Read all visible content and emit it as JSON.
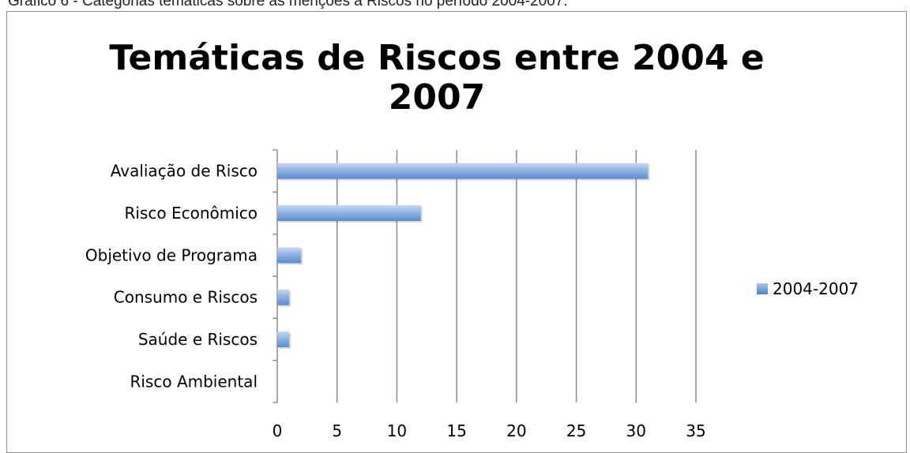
{
  "caption": "Gráfico 6 - Categorias temáticas sobre as menções a Riscos no período 2004-2007.",
  "colors": {
    "bar": "#6d9bd6",
    "bar_light": "#b9d0ef",
    "bar_dark": "#4a7bbf",
    "grid": "#8c8c8c"
  },
  "chart_data": {
    "type": "bar",
    "orientation": "horizontal",
    "title_lines": [
      "Temáticas de Riscos entre 2004 e",
      "2007"
    ],
    "categories": [
      "Avaliação de Risco",
      "Risco Econômico",
      "Objetivo de Programa",
      "Consumo e Riscos",
      "Saúde e Riscos",
      "Risco Ambiental"
    ],
    "series": [
      {
        "name": "2004-2007",
        "values": [
          31,
          12,
          2,
          1,
          1,
          0
        ]
      }
    ],
    "xlim": [
      0,
      35
    ],
    "x_ticks": [
      0,
      5,
      10,
      15,
      20,
      25,
      30,
      35
    ],
    "grid": true,
    "legend_position": "right"
  }
}
